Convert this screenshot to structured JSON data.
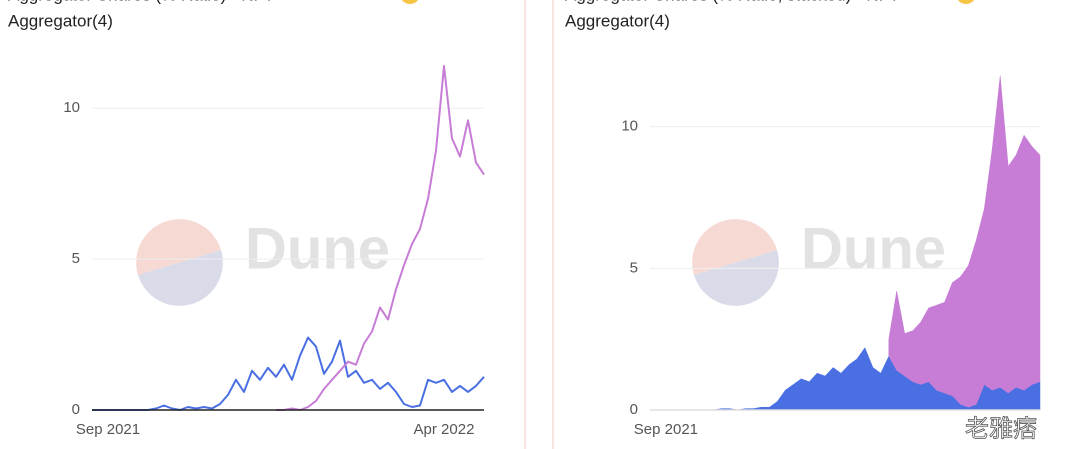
{
  "chart_data": [
    {
      "type": "line",
      "title": [
        "Aggregator Shares (% Ratio) - NFT",
        "Aggregator(4)"
      ],
      "categories": [
        null,
        null,
        "Sep 2021",
        null,
        null,
        null,
        null,
        null,
        null,
        null,
        null,
        null,
        null,
        null,
        null,
        null,
        null,
        null,
        null,
        null,
        null,
        null,
        null,
        null,
        null,
        null,
        null,
        null,
        null,
        null,
        null,
        null,
        null,
        null,
        null,
        null,
        null,
        null,
        null,
        null,
        null,
        null,
        null,
        null,
        "Apr 2022",
        null,
        null,
        null,
        null,
        null
      ],
      "series": [
        {
          "color": "#4a6fe3",
          "values": [
            0,
            0,
            0,
            0,
            0,
            0,
            0,
            0,
            0.05,
            0.15,
            0.05,
            0,
            0.1,
            0.05,
            0.1,
            0.05,
            0.2,
            0.5,
            1.0,
            0.6,
            1.3,
            1.0,
            1.4,
            1.1,
            1.5,
            1.0,
            1.8,
            2.4,
            2.1,
            1.2,
            1.6,
            2.3,
            1.1,
            1.3,
            0.9,
            1.0,
            0.7,
            0.9,
            0.6,
            0.2,
            0.1,
            0.15,
            1.0,
            0.9,
            1.0,
            0.6,
            0.8,
            0.6,
            0.8,
            1.1
          ]
        },
        {
          "color": "#c77dd6",
          "values": [
            null,
            null,
            null,
            null,
            null,
            null,
            null,
            null,
            null,
            null,
            null,
            null,
            null,
            null,
            null,
            null,
            null,
            null,
            null,
            null,
            null,
            null,
            null,
            0,
            0,
            0.05,
            0,
            0.1,
            0.3,
            0.7,
            1.0,
            1.3,
            1.6,
            1.5,
            2.2,
            2.6,
            3.4,
            3.0,
            4.0,
            4.8,
            5.5,
            6.0,
            7.0,
            8.6,
            11.4,
            9.0,
            8.4,
            9.6,
            8.2,
            7.8
          ]
        }
      ],
      "ylim": [
        0,
        11.5
      ],
      "yticks": [
        0,
        5,
        10
      ],
      "grid": true
    },
    {
      "type": "area",
      "stacked": true,
      "title": [
        "Aggregator Shares (% Ratio, stacked) - NFT",
        "Aggregator(4)"
      ],
      "categories": [
        null,
        null,
        "Sep 2021",
        null,
        null,
        null,
        null,
        null,
        null,
        null,
        null,
        null,
        null,
        null,
        null,
        null,
        null,
        null,
        null,
        null,
        null,
        null,
        null,
        null,
        null,
        null,
        null,
        null,
        null,
        null,
        null,
        null,
        null,
        null,
        null,
        null,
        null,
        null,
        null,
        null,
        null,
        null,
        null,
        null,
        null,
        null,
        null,
        null,
        null,
        null
      ],
      "series": [
        {
          "color": "#4a6fe3",
          "values": [
            0,
            0,
            0,
            0,
            0,
            0,
            0,
            0,
            0,
            0.05,
            0.05,
            0,
            0.05,
            0.05,
            0.1,
            0.1,
            0.3,
            0.7,
            0.9,
            1.1,
            1.0,
            1.3,
            1.2,
            1.5,
            1.3,
            1.6,
            1.8,
            2.2,
            1.5,
            1.3,
            1.9,
            1.4,
            1.2,
            1.0,
            0.9,
            1.0,
            0.7,
            0.6,
            0.5,
            0.2,
            0.1,
            0.2,
            0.9,
            0.7,
            0.8,
            0.6,
            0.8,
            0.7,
            0.9,
            1.0
          ]
        },
        {
          "color": "#c77dd6",
          "values": [
            null,
            null,
            null,
            null,
            null,
            null,
            null,
            null,
            null,
            null,
            null,
            null,
            null,
            null,
            null,
            null,
            null,
            null,
            null,
            null,
            null,
            null,
            null,
            null,
            null,
            null,
            null,
            null,
            null,
            null,
            0.6,
            2.8,
            1.5,
            1.8,
            2.2,
            2.6,
            3.0,
            3.2,
            4.0,
            4.5,
            5.0,
            5.8,
            6.2,
            8.5,
            11.0,
            8.0,
            8.2,
            9.0,
            8.4,
            8.0
          ]
        }
      ],
      "ylim": [
        0,
        12
      ],
      "yticks": [
        0,
        5,
        10
      ],
      "grid": true
    }
  ],
  "watermarks": {
    "dune": "Dune",
    "channel": "老雅痞"
  }
}
